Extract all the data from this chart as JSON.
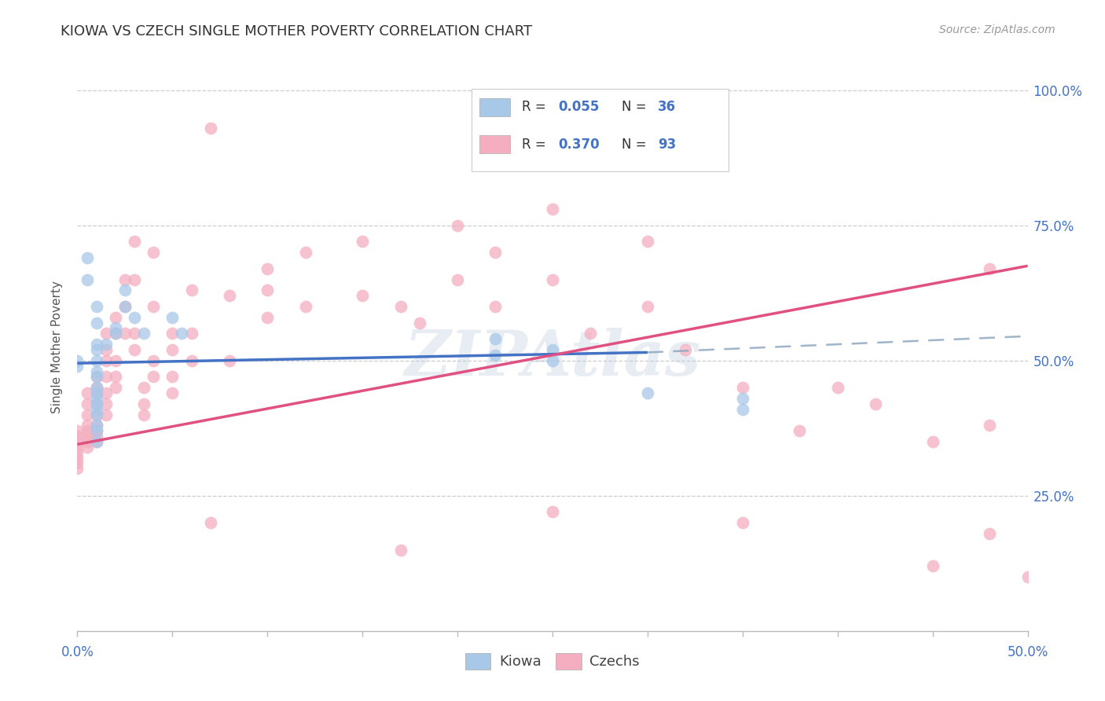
{
  "title": "KIOWA VS CZECH SINGLE MOTHER POVERTY CORRELATION CHART",
  "source": "Source: ZipAtlas.com",
  "ylabel": "Single Mother Poverty",
  "xlim": [
    0.0,
    0.5
  ],
  "ylim": [
    0.0,
    1.05
  ],
  "kiowa_color": "#a8c8e8",
  "czech_color": "#f4aec0",
  "kiowa_line_color": "#4472c4",
  "czech_line_color": "#e05080",
  "dash_color": "#90a8c0",
  "kiowa_R": 0.055,
  "kiowa_N": 36,
  "czech_R": 0.37,
  "czech_N": 93,
  "watermark": "ZIPAtlas",
  "background_color": "#ffffff",
  "grid_color": "#c8c8c8",
  "tick_color": "#4472c4",
  "kiowa_line_x": [
    0.0,
    0.3
  ],
  "kiowa_line_y": [
    0.495,
    0.515
  ],
  "czech_line_x": [
    0.0,
    0.5
  ],
  "czech_line_y": [
    0.345,
    0.675
  ],
  "dash_line_x": [
    0.3,
    0.5
  ],
  "dash_line_y": [
    0.515,
    0.545
  ],
  "kiowa_scatter": [
    [
      0.0,
      0.49
    ],
    [
      0.0,
      0.5
    ],
    [
      0.005,
      0.69
    ],
    [
      0.005,
      0.65
    ],
    [
      0.01,
      0.6
    ],
    [
      0.01,
      0.57
    ],
    [
      0.01,
      0.53
    ],
    [
      0.01,
      0.52
    ],
    [
      0.01,
      0.5
    ],
    [
      0.01,
      0.48
    ],
    [
      0.01,
      0.47
    ],
    [
      0.01,
      0.45
    ],
    [
      0.01,
      0.44
    ],
    [
      0.01,
      0.43
    ],
    [
      0.01,
      0.42
    ],
    [
      0.01,
      0.41
    ],
    [
      0.01,
      0.4
    ],
    [
      0.01,
      0.38
    ],
    [
      0.01,
      0.37
    ],
    [
      0.01,
      0.35
    ],
    [
      0.015,
      0.53
    ],
    [
      0.02,
      0.56
    ],
    [
      0.02,
      0.55
    ],
    [
      0.025,
      0.63
    ],
    [
      0.025,
      0.6
    ],
    [
      0.03,
      0.58
    ],
    [
      0.035,
      0.55
    ],
    [
      0.05,
      0.58
    ],
    [
      0.055,
      0.55
    ],
    [
      0.22,
      0.54
    ],
    [
      0.22,
      0.51
    ],
    [
      0.25,
      0.52
    ],
    [
      0.25,
      0.5
    ],
    [
      0.3,
      0.44
    ],
    [
      0.35,
      0.43
    ],
    [
      0.35,
      0.41
    ]
  ],
  "czech_scatter": [
    [
      0.0,
      0.37
    ],
    [
      0.0,
      0.36
    ],
    [
      0.0,
      0.35
    ],
    [
      0.0,
      0.34
    ],
    [
      0.0,
      0.33
    ],
    [
      0.0,
      0.32
    ],
    [
      0.0,
      0.31
    ],
    [
      0.0,
      0.3
    ],
    [
      0.005,
      0.44
    ],
    [
      0.005,
      0.42
    ],
    [
      0.005,
      0.4
    ],
    [
      0.005,
      0.38
    ],
    [
      0.005,
      0.37
    ],
    [
      0.005,
      0.36
    ],
    [
      0.005,
      0.35
    ],
    [
      0.005,
      0.34
    ],
    [
      0.01,
      0.47
    ],
    [
      0.01,
      0.45
    ],
    [
      0.01,
      0.44
    ],
    [
      0.01,
      0.42
    ],
    [
      0.01,
      0.4
    ],
    [
      0.01,
      0.38
    ],
    [
      0.01,
      0.37
    ],
    [
      0.01,
      0.36
    ],
    [
      0.01,
      0.35
    ],
    [
      0.015,
      0.55
    ],
    [
      0.015,
      0.52
    ],
    [
      0.015,
      0.5
    ],
    [
      0.015,
      0.47
    ],
    [
      0.015,
      0.44
    ],
    [
      0.015,
      0.42
    ],
    [
      0.015,
      0.4
    ],
    [
      0.02,
      0.58
    ],
    [
      0.02,
      0.55
    ],
    [
      0.02,
      0.5
    ],
    [
      0.02,
      0.47
    ],
    [
      0.02,
      0.45
    ],
    [
      0.025,
      0.65
    ],
    [
      0.025,
      0.6
    ],
    [
      0.025,
      0.55
    ],
    [
      0.03,
      0.72
    ],
    [
      0.03,
      0.65
    ],
    [
      0.03,
      0.55
    ],
    [
      0.03,
      0.52
    ],
    [
      0.035,
      0.45
    ],
    [
      0.035,
      0.42
    ],
    [
      0.035,
      0.4
    ],
    [
      0.04,
      0.7
    ],
    [
      0.04,
      0.6
    ],
    [
      0.04,
      0.5
    ],
    [
      0.04,
      0.47
    ],
    [
      0.05,
      0.55
    ],
    [
      0.05,
      0.52
    ],
    [
      0.05,
      0.47
    ],
    [
      0.05,
      0.44
    ],
    [
      0.06,
      0.63
    ],
    [
      0.06,
      0.55
    ],
    [
      0.06,
      0.5
    ],
    [
      0.07,
      0.93
    ],
    [
      0.08,
      0.62
    ],
    [
      0.08,
      0.5
    ],
    [
      0.1,
      0.67
    ],
    [
      0.1,
      0.63
    ],
    [
      0.1,
      0.58
    ],
    [
      0.12,
      0.7
    ],
    [
      0.12,
      0.6
    ],
    [
      0.15,
      0.72
    ],
    [
      0.15,
      0.62
    ],
    [
      0.17,
      0.6
    ],
    [
      0.18,
      0.57
    ],
    [
      0.2,
      0.75
    ],
    [
      0.2,
      0.65
    ],
    [
      0.22,
      0.7
    ],
    [
      0.22,
      0.6
    ],
    [
      0.25,
      0.78
    ],
    [
      0.25,
      0.65
    ],
    [
      0.27,
      0.55
    ],
    [
      0.3,
      0.72
    ],
    [
      0.3,
      0.6
    ],
    [
      0.32,
      0.52
    ],
    [
      0.35,
      0.45
    ],
    [
      0.38,
      0.37
    ],
    [
      0.4,
      0.45
    ],
    [
      0.42,
      0.42
    ],
    [
      0.45,
      0.35
    ],
    [
      0.48,
      0.67
    ],
    [
      0.48,
      0.38
    ],
    [
      0.5,
      0.1
    ],
    [
      0.07,
      0.2
    ],
    [
      0.17,
      0.15
    ],
    [
      0.25,
      0.22
    ],
    [
      0.35,
      0.2
    ],
    [
      0.45,
      0.12
    ],
    [
      0.48,
      0.18
    ]
  ]
}
